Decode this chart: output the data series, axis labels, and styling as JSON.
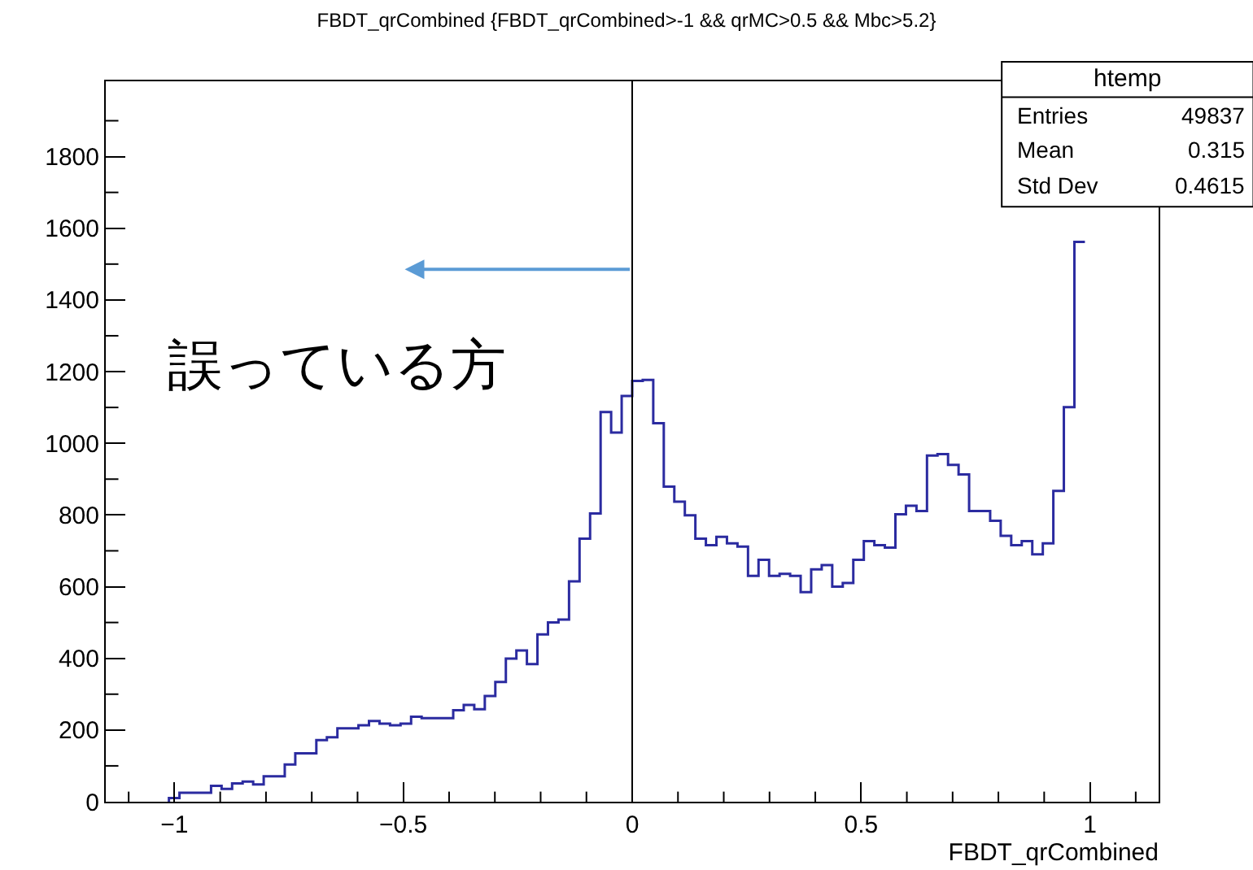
{
  "chart_data": {
    "type": "histogram",
    "title": "FBDT_qrCombined {FBDT_qrCombined>-1 && qrMC>0.5 && Mbc>5.2}",
    "xlabel": "FBDT_qrCombined",
    "bins": [
      -1.012,
      -0.989,
      -0.966,
      -0.943,
      -0.92,
      -0.897,
      -0.874,
      -0.851,
      -0.828,
      -0.805,
      -0.782,
      -0.759,
      -0.736,
      -0.713,
      -0.69,
      -0.667,
      -0.644,
      -0.621,
      -0.598,
      -0.575,
      -0.552,
      -0.529,
      -0.506,
      -0.483,
      -0.46,
      -0.437,
      -0.414,
      -0.391,
      -0.368,
      -0.345,
      -0.322,
      -0.299,
      -0.276,
      -0.253,
      -0.23,
      -0.207,
      -0.184,
      -0.161,
      -0.138,
      -0.115,
      -0.092,
      -0.069,
      -0.046,
      -0.023,
      0,
      0.023,
      0.046,
      0.069,
      0.092,
      0.115,
      0.138,
      0.161,
      0.184,
      0.207,
      0.23,
      0.253,
      0.276,
      0.299,
      0.322,
      0.345,
      0.368,
      0.391,
      0.414,
      0.437,
      0.46,
      0.483,
      0.506,
      0.529,
      0.552,
      0.575,
      0.598,
      0.621,
      0.644,
      0.667,
      0.69,
      0.713,
      0.736,
      0.759,
      0.782,
      0.805,
      0.828,
      0.851,
      0.874,
      0.897,
      0.92,
      0.943,
      0.966,
      0.989
    ],
    "values": [
      10,
      25,
      25,
      25,
      44,
      36,
      51,
      56,
      48,
      71,
      71,
      104,
      135,
      135,
      172,
      180,
      205,
      205,
      213,
      225,
      218,
      213,
      218,
      237,
      233,
      233,
      233,
      255,
      270,
      258,
      295,
      334,
      399,
      422,
      384,
      467,
      500,
      508,
      615,
      734,
      804,
      1087,
      1030,
      1132,
      1174,
      1177,
      1056,
      879,
      837,
      799,
      734,
      716,
      739,
      721,
      712,
      630,
      675,
      630,
      636,
      630,
      585,
      648,
      660,
      600,
      610,
      675,
      727,
      716,
      709,
      802,
      826,
      811,
      966,
      970,
      940,
      913,
      811,
      811,
      784,
      742,
      716,
      727,
      690,
      721,
      867,
      1101,
      1562
    ],
    "color": "#2b2ba0",
    "xlim": [
      -1.15,
      1.15
    ],
    "xticks": [
      {
        "value": -1.1,
        "label": null
      },
      {
        "value": -1,
        "label": "−1"
      },
      {
        "value": -0.9,
        "label": null
      },
      {
        "value": -0.8,
        "label": null
      },
      {
        "value": -0.7,
        "label": null
      },
      {
        "value": -0.6,
        "label": null
      },
      {
        "value": -0.5,
        "label": "−0.5"
      },
      {
        "value": -0.4,
        "label": null
      },
      {
        "value": -0.3,
        "label": null
      },
      {
        "value": -0.2,
        "label": null
      },
      {
        "value": -0.1,
        "label": null
      },
      0,
      {
        "value": 0.1,
        "label": null
      },
      {
        "value": 0.2,
        "label": null
      },
      {
        "value": 0.3,
        "label": null
      },
      {
        "value": 0.4,
        "label": null
      },
      0.5,
      {
        "value": 0.6,
        "label": null
      },
      {
        "value": 0.7,
        "label": null
      },
      {
        "value": 0.8,
        "label": null
      },
      {
        "value": 0.9,
        "label": null
      },
      1,
      {
        "value": 1.1,
        "label": null
      }
    ],
    "ylim": [
      0,
      2010
    ],
    "yticks": [
      0,
      {
        "value": 100,
        "label": null
      },
      200,
      {
        "value": 300,
        "label": null
      },
      400,
      {
        "value": 500,
        "label": null
      },
      600,
      {
        "value": 700,
        "label": null
      },
      800,
      {
        "value": 900,
        "label": null
      },
      1000,
      {
        "value": 1100,
        "label": null
      },
      1200,
      {
        "value": 1300,
        "label": null
      },
      1400,
      {
        "value": 1500,
        "label": null
      },
      1600,
      {
        "value": 1700,
        "label": null
      },
      1800,
      {
        "value": 1900,
        "label": null
      }
    ],
    "ref_lines": [
      {
        "axis": "x",
        "value": 0,
        "color": "#000000"
      }
    ],
    "annotations": [
      "誤っている方",
      "htemp",
      "Entries",
      "49837",
      "Mean",
      "0.315",
      "Std Dev",
      "0.4615"
    ]
  }
}
